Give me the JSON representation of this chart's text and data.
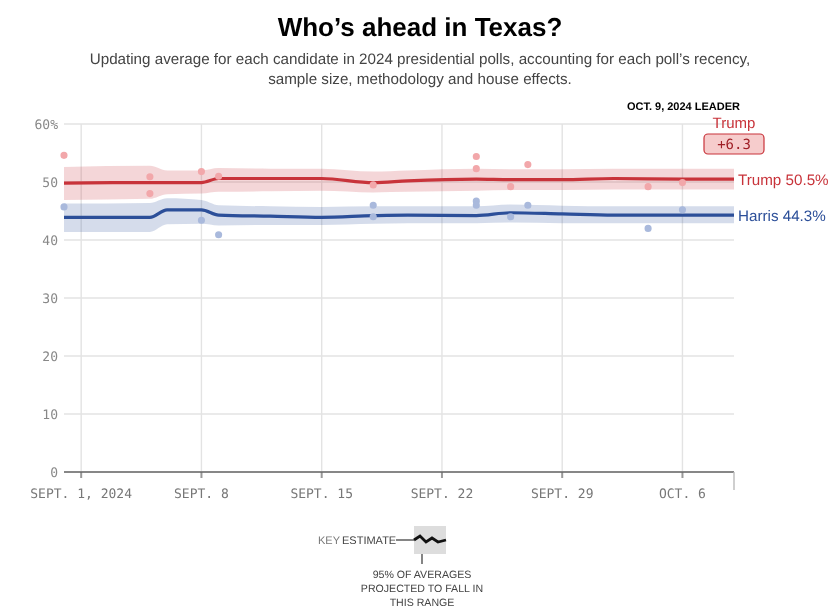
{
  "chart_data": {
    "type": "line",
    "title": "Who’s ahead in Texas?",
    "subtitle": "Updating average for each candidate in 2024 presidential polls, accounting for each poll’s recency, sample size, methodology and house effects.",
    "annotations": [
      "OCT. 9, 2024 LEADER",
      "Trump",
      "+6.3",
      "KEY",
      "ESTIMATE",
      "95% OF AVERAGES PROJECTED TO FALL IN THIS RANGE"
    ],
    "x": [
      "2024-08-31",
      "2024-09-05",
      "2024-09-06",
      "2024-09-08",
      "2024-09-09",
      "2024-09-12",
      "2024-09-15",
      "2024-09-18",
      "2024-09-20",
      "2024-09-24",
      "2024-09-26",
      "2024-09-29",
      "2024-10-02",
      "2024-10-06",
      "2024-10-09"
    ],
    "series": [
      {
        "name": "Trump",
        "color": "#c8333a",
        "values": [
          49.8,
          49.9,
          49.9,
          49.9,
          50.6,
          50.6,
          50.6,
          49.9,
          50.2,
          50.5,
          50.4,
          50.4,
          50.6,
          50.5,
          50.5
        ],
        "lower": [
          46.9,
          47.1,
          47.9,
          48,
          48.3,
          48.4,
          48.5,
          48.2,
          48.3,
          48.5,
          48.6,
          48.6,
          48.7,
          48.7,
          48.7
        ],
        "upper": [
          52.6,
          52.8,
          52,
          52,
          52.4,
          52.3,
          52.3,
          51.8,
          52,
          52.3,
          52.2,
          52.2,
          52.3,
          52.3,
          52.3
        ],
        "value_labels": [
          null,
          null,
          null,
          null,
          null,
          null,
          null,
          null,
          null,
          null,
          null,
          null,
          null,
          null,
          "50.5%"
        ]
      },
      {
        "name": "Harris",
        "color": "#2c4f99",
        "values": [
          43.9,
          43.9,
          45.2,
          45.2,
          44.3,
          44.1,
          43.9,
          44.2,
          44.3,
          44.2,
          44.7,
          44.5,
          44.3,
          44.3,
          44.3
        ],
        "lower": [
          41.4,
          41.4,
          42.7,
          42.8,
          42.5,
          42.6,
          42.6,
          42.8,
          42.9,
          42.9,
          43,
          42.9,
          42.9,
          42.9,
          42.9
        ],
        "upper": [
          46.3,
          46.4,
          47.2,
          46.9,
          46,
          45.8,
          45.7,
          45.8,
          45.8,
          45.8,
          46.1,
          45.9,
          45.8,
          45.8,
          45.8
        ],
        "value_labels": [
          null,
          null,
          null,
          null,
          null,
          null,
          null,
          null,
          null,
          null,
          null,
          null,
          null,
          null,
          "44.3%"
        ]
      },
      {
        "type": "scatter",
        "marker": "circle",
        "color": "#f2a7aa",
        "x": [
          "2024-08-31",
          "2024-09-05",
          "2024-09-05",
          "2024-09-08",
          "2024-09-09",
          "2024-09-18",
          "2024-09-24",
          "2024-09-24",
          "2024-09-26",
          "2024-09-27",
          "2024-10-04",
          "2024-10-06"
        ],
        "values": [
          54.6,
          50.9,
          48,
          51.8,
          51,
          49.5,
          54.4,
          52.3,
          49.2,
          53,
          49.2,
          49.9
        ]
      },
      {
        "type": "scatter",
        "marker": "circle",
        "color": "#a9b9dc",
        "x": [
          "2024-08-31",
          "2024-09-08",
          "2024-09-09",
          "2024-09-18",
          "2024-09-18",
          "2024-09-24",
          "2024-09-24",
          "2024-09-26",
          "2024-09-27",
          "2024-10-04",
          "2024-10-06"
        ],
        "values": [
          45.7,
          43.4,
          40.9,
          46,
          44,
          46.7,
          46,
          44,
          46,
          42,
          45.2
        ]
      }
    ],
    "xlim": [
      "2024-08-31",
      "2024-10-09"
    ],
    "xticks": [
      {
        "value": "2024-09-01",
        "label": "SEPT. 1, 2024"
      },
      {
        "value": "2024-09-08",
        "label": "SEPT. 8"
      },
      {
        "value": "2024-09-15",
        "label": "SEPT. 15"
      },
      {
        "value": "2024-09-22",
        "label": "SEPT. 22"
      },
      {
        "value": "2024-09-29",
        "label": "SEPT. 29"
      },
      {
        "value": "2024-10-06",
        "label": "OCT. 6"
      }
    ],
    "ylim": [
      0,
      60
    ],
    "yticks": [
      0,
      10,
      20,
      30,
      40,
      {
        "value": 60,
        "label": "60%"
      },
      50
    ],
    "grid": true,
    "line_style": "solid"
  }
}
